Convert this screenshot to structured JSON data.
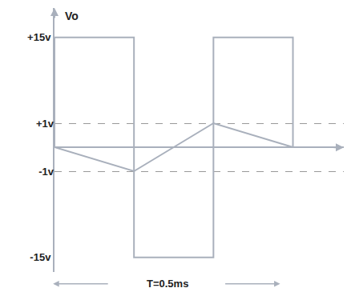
{
  "chart_data": {
    "type": "line",
    "ylabel": "Vo",
    "annotations": [
      "T=0.5ms"
    ],
    "series": [
      {
        "x": [
          0,
          0,
          0.25,
          0.25,
          0.5,
          0.5,
          0.75,
          0.75
        ],
        "values": [
          0,
          15,
          15,
          -15,
          -15,
          15,
          15,
          0
        ],
        "color": "#a9b0bc",
        "axis": "y"
      },
      {
        "x": [
          0,
          0.25,
          0.5,
          0.75
        ],
        "values": [
          0,
          -1,
          1,
          0
        ],
        "color": "#a9b0bc",
        "axis": "y2"
      }
    ],
    "xlim": [
      0,
      0.91
    ],
    "ylim": [
      -17,
      19
    ],
    "yticks": [
      {
        "value": 15,
        "label": "+15v"
      },
      {
        "value": -15,
        "label": "-15v"
      }
    ],
    "y2lim": [
      -5.2,
      5.8
    ],
    "y2ticks": [
      {
        "value": 1,
        "label": "+1v"
      },
      {
        "value": -1,
        "label": "-1v"
      }
    ],
    "grid": true,
    "tick_labels": "y"
  }
}
